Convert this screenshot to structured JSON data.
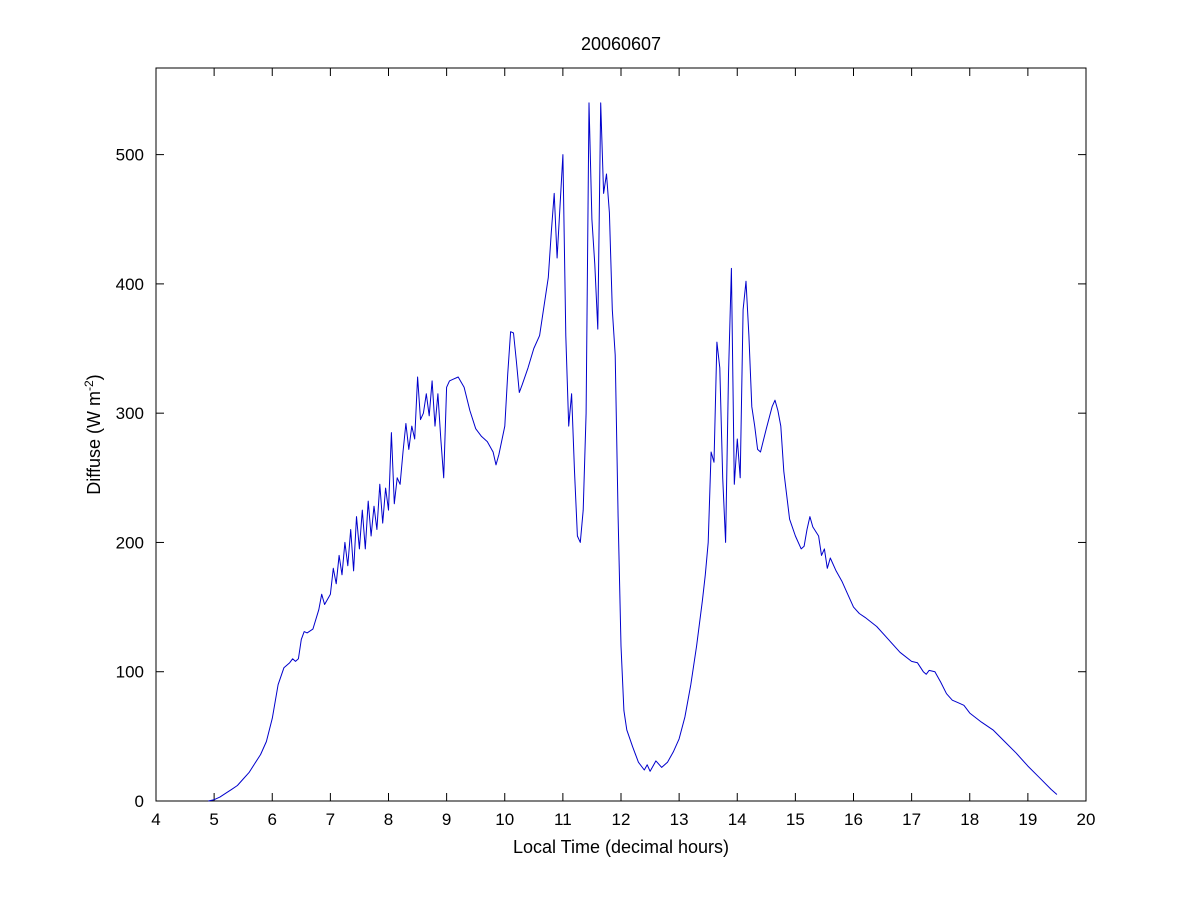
{
  "chart_data": {
    "type": "line",
    "title": "20060607",
    "xlabel": "Local Time (decimal hours)",
    "ylabel_main": "Diffuse (W m",
    "ylabel_sup": "-2",
    "ylabel_close": ")",
    "xlim": [
      4,
      20
    ],
    "ylim": [
      0,
      567
    ],
    "x_ticks": [
      4,
      5,
      6,
      7,
      8,
      9,
      10,
      11,
      12,
      13,
      14,
      15,
      16,
      17,
      18,
      19,
      20
    ],
    "y_ticks": [
      0,
      100,
      200,
      300,
      400,
      500
    ],
    "grid": false,
    "line_color": "#0000cc",
    "series": [
      {
        "points": [
          [
            4.9,
            0
          ],
          [
            5.0,
            1
          ],
          [
            5.1,
            3
          ],
          [
            5.2,
            6
          ],
          [
            5.3,
            9
          ],
          [
            5.4,
            12
          ],
          [
            5.5,
            17
          ],
          [
            5.6,
            22
          ],
          [
            5.7,
            29
          ],
          [
            5.8,
            36
          ],
          [
            5.9,
            46
          ],
          [
            6.0,
            64
          ],
          [
            6.1,
            90
          ],
          [
            6.2,
            103
          ],
          [
            6.3,
            107
          ],
          [
            6.35,
            110
          ],
          [
            6.4,
            108
          ],
          [
            6.45,
            110
          ],
          [
            6.5,
            125
          ],
          [
            6.55,
            131
          ],
          [
            6.6,
            130
          ],
          [
            6.7,
            133
          ],
          [
            6.8,
            148
          ],
          [
            6.85,
            160
          ],
          [
            6.9,
            152
          ],
          [
            7.0,
            160
          ],
          [
            7.05,
            180
          ],
          [
            7.1,
            168
          ],
          [
            7.15,
            190
          ],
          [
            7.2,
            175
          ],
          [
            7.25,
            200
          ],
          [
            7.3,
            182
          ],
          [
            7.35,
            210
          ],
          [
            7.4,
            178
          ],
          [
            7.45,
            220
          ],
          [
            7.5,
            195
          ],
          [
            7.55,
            225
          ],
          [
            7.6,
            195
          ],
          [
            7.65,
            232
          ],
          [
            7.7,
            205
          ],
          [
            7.75,
            228
          ],
          [
            7.8,
            210
          ],
          [
            7.85,
            245
          ],
          [
            7.9,
            215
          ],
          [
            7.95,
            242
          ],
          [
            8.0,
            225
          ],
          [
            8.05,
            285
          ],
          [
            8.1,
            230
          ],
          [
            8.15,
            250
          ],
          [
            8.2,
            245
          ],
          [
            8.25,
            270
          ],
          [
            8.3,
            292
          ],
          [
            8.35,
            272
          ],
          [
            8.4,
            290
          ],
          [
            8.45,
            280
          ],
          [
            8.5,
            328
          ],
          [
            8.55,
            295
          ],
          [
            8.6,
            300
          ],
          [
            8.65,
            315
          ],
          [
            8.7,
            298
          ],
          [
            8.75,
            325
          ],
          [
            8.8,
            290
          ],
          [
            8.85,
            315
          ],
          [
            8.9,
            280
          ],
          [
            8.95,
            250
          ],
          [
            9.0,
            320
          ],
          [
            9.05,
            325
          ],
          [
            9.1,
            326
          ],
          [
            9.2,
            328
          ],
          [
            9.3,
            320
          ],
          [
            9.4,
            302
          ],
          [
            9.5,
            288
          ],
          [
            9.6,
            282
          ],
          [
            9.7,
            278
          ],
          [
            9.8,
            270
          ],
          [
            9.85,
            260
          ],
          [
            9.9,
            268
          ],
          [
            10.0,
            290
          ],
          [
            10.05,
            330
          ],
          [
            10.1,
            363
          ],
          [
            10.15,
            362
          ],
          [
            10.2,
            340
          ],
          [
            10.25,
            316
          ],
          [
            10.3,
            322
          ],
          [
            10.4,
            335
          ],
          [
            10.5,
            350
          ],
          [
            10.6,
            360
          ],
          [
            10.65,
            375
          ],
          [
            10.7,
            390
          ],
          [
            10.75,
            405
          ],
          [
            10.8,
            440
          ],
          [
            10.85,
            470
          ],
          [
            10.9,
            420
          ],
          [
            10.95,
            460
          ],
          [
            11.0,
            500
          ],
          [
            11.05,
            360
          ],
          [
            11.1,
            290
          ],
          [
            11.15,
            315
          ],
          [
            11.2,
            255
          ],
          [
            11.25,
            205
          ],
          [
            11.3,
            200
          ],
          [
            11.35,
            225
          ],
          [
            11.4,
            300
          ],
          [
            11.45,
            540
          ],
          [
            11.5,
            450
          ],
          [
            11.55,
            415
          ],
          [
            11.6,
            365
          ],
          [
            11.65,
            540
          ],
          [
            11.7,
            470
          ],
          [
            11.75,
            485
          ],
          [
            11.8,
            455
          ],
          [
            11.85,
            380
          ],
          [
            11.9,
            345
          ],
          [
            11.95,
            220
          ],
          [
            12.0,
            120
          ],
          [
            12.05,
            70
          ],
          [
            12.1,
            55
          ],
          [
            12.2,
            42
          ],
          [
            12.3,
            30
          ],
          [
            12.4,
            24
          ],
          [
            12.45,
            28
          ],
          [
            12.5,
            23
          ],
          [
            12.55,
            27
          ],
          [
            12.6,
            31
          ],
          [
            12.7,
            26
          ],
          [
            12.8,
            30
          ],
          [
            12.9,
            38
          ],
          [
            13.0,
            48
          ],
          [
            13.1,
            65
          ],
          [
            13.2,
            90
          ],
          [
            13.3,
            120
          ],
          [
            13.4,
            155
          ],
          [
            13.45,
            175
          ],
          [
            13.5,
            200
          ],
          [
            13.55,
            270
          ],
          [
            13.6,
            262
          ],
          [
            13.65,
            355
          ],
          [
            13.7,
            335
          ],
          [
            13.75,
            250
          ],
          [
            13.8,
            200
          ],
          [
            13.85,
            330
          ],
          [
            13.9,
            412
          ],
          [
            13.95,
            245
          ],
          [
            14.0,
            280
          ],
          [
            14.05,
            250
          ],
          [
            14.1,
            380
          ],
          [
            14.15,
            402
          ],
          [
            14.2,
            360
          ],
          [
            14.25,
            305
          ],
          [
            14.3,
            290
          ],
          [
            14.35,
            272
          ],
          [
            14.4,
            270
          ],
          [
            14.5,
            288
          ],
          [
            14.6,
            305
          ],
          [
            14.65,
            310
          ],
          [
            14.7,
            302
          ],
          [
            14.75,
            290
          ],
          [
            14.8,
            255
          ],
          [
            14.9,
            218
          ],
          [
            15.0,
            205
          ],
          [
            15.1,
            195
          ],
          [
            15.15,
            197
          ],
          [
            15.2,
            210
          ],
          [
            15.25,
            220
          ],
          [
            15.3,
            212
          ],
          [
            15.4,
            205
          ],
          [
            15.45,
            190
          ],
          [
            15.5,
            195
          ],
          [
            15.55,
            180
          ],
          [
            15.6,
            188
          ],
          [
            15.7,
            178
          ],
          [
            15.8,
            170
          ],
          [
            15.9,
            160
          ],
          [
            16.0,
            150
          ],
          [
            16.1,
            145
          ],
          [
            16.2,
            142
          ],
          [
            16.4,
            135
          ],
          [
            16.6,
            125
          ],
          [
            16.8,
            115
          ],
          [
            17.0,
            108
          ],
          [
            17.1,
            107
          ],
          [
            17.2,
            100
          ],
          [
            17.25,
            98
          ],
          [
            17.3,
            101
          ],
          [
            17.4,
            100
          ],
          [
            17.5,
            92
          ],
          [
            17.6,
            83
          ],
          [
            17.7,
            78
          ],
          [
            17.8,
            76
          ],
          [
            17.9,
            74
          ],
          [
            18.0,
            68
          ],
          [
            18.2,
            61
          ],
          [
            18.4,
            55
          ],
          [
            18.6,
            46
          ],
          [
            18.8,
            37
          ],
          [
            19.0,
            27
          ],
          [
            19.2,
            18
          ],
          [
            19.4,
            9
          ],
          [
            19.5,
            5
          ]
        ]
      }
    ]
  }
}
